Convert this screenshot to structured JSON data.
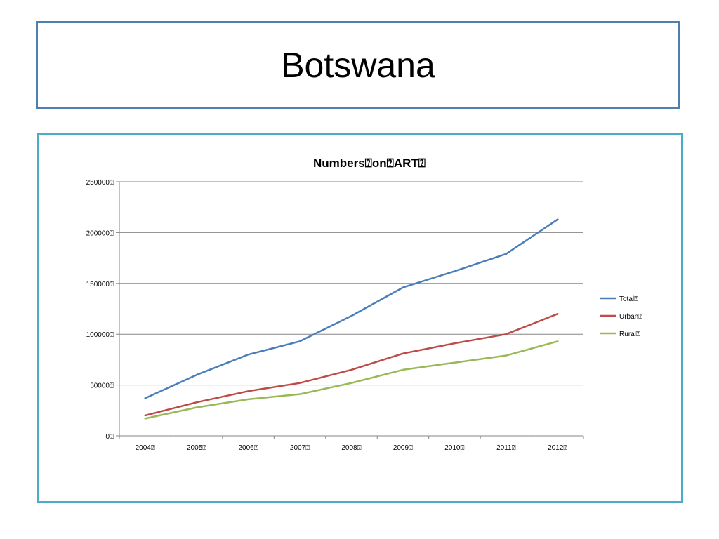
{
  "slide": {
    "title": "Botswana"
  },
  "chart_data": {
    "type": "line",
    "title": "Numbers\u0000on\u0000ART\u0000",
    "title_display": "Numbers⍰on⍰ART⍰",
    "categories": [
      "2004⍰",
      "2005⍰",
      "2006⍰",
      "2007⍰",
      "2008⍰",
      "2009⍰",
      "2010⍰",
      "2011⍰",
      "2012⍰"
    ],
    "ylim": [
      0,
      250000
    ],
    "yticks": [
      0,
      50000,
      100000,
      150000,
      200000,
      250000
    ],
    "ytick_labels": [
      "0⍰",
      "50000⍰",
      "100000⍰",
      "150000⍰",
      "200000⍰",
      "250000⍰"
    ],
    "grid": true,
    "legend_position": "right",
    "series": [
      {
        "name": "Total⍰",
        "color": "#4a7ebb",
        "values": [
          37000,
          60000,
          80000,
          93000,
          118000,
          146000,
          162000,
          179000,
          213000
        ]
      },
      {
        "name": "Urban⍰",
        "color": "#be4b48",
        "values": [
          20000,
          33000,
          44000,
          52000,
          65000,
          81000,
          91000,
          100000,
          120000
        ]
      },
      {
        "name": "Rural⍰",
        "color": "#98b954",
        "values": [
          17000,
          28000,
          36000,
          41000,
          52000,
          65000,
          72000,
          79000,
          93000
        ]
      }
    ]
  }
}
